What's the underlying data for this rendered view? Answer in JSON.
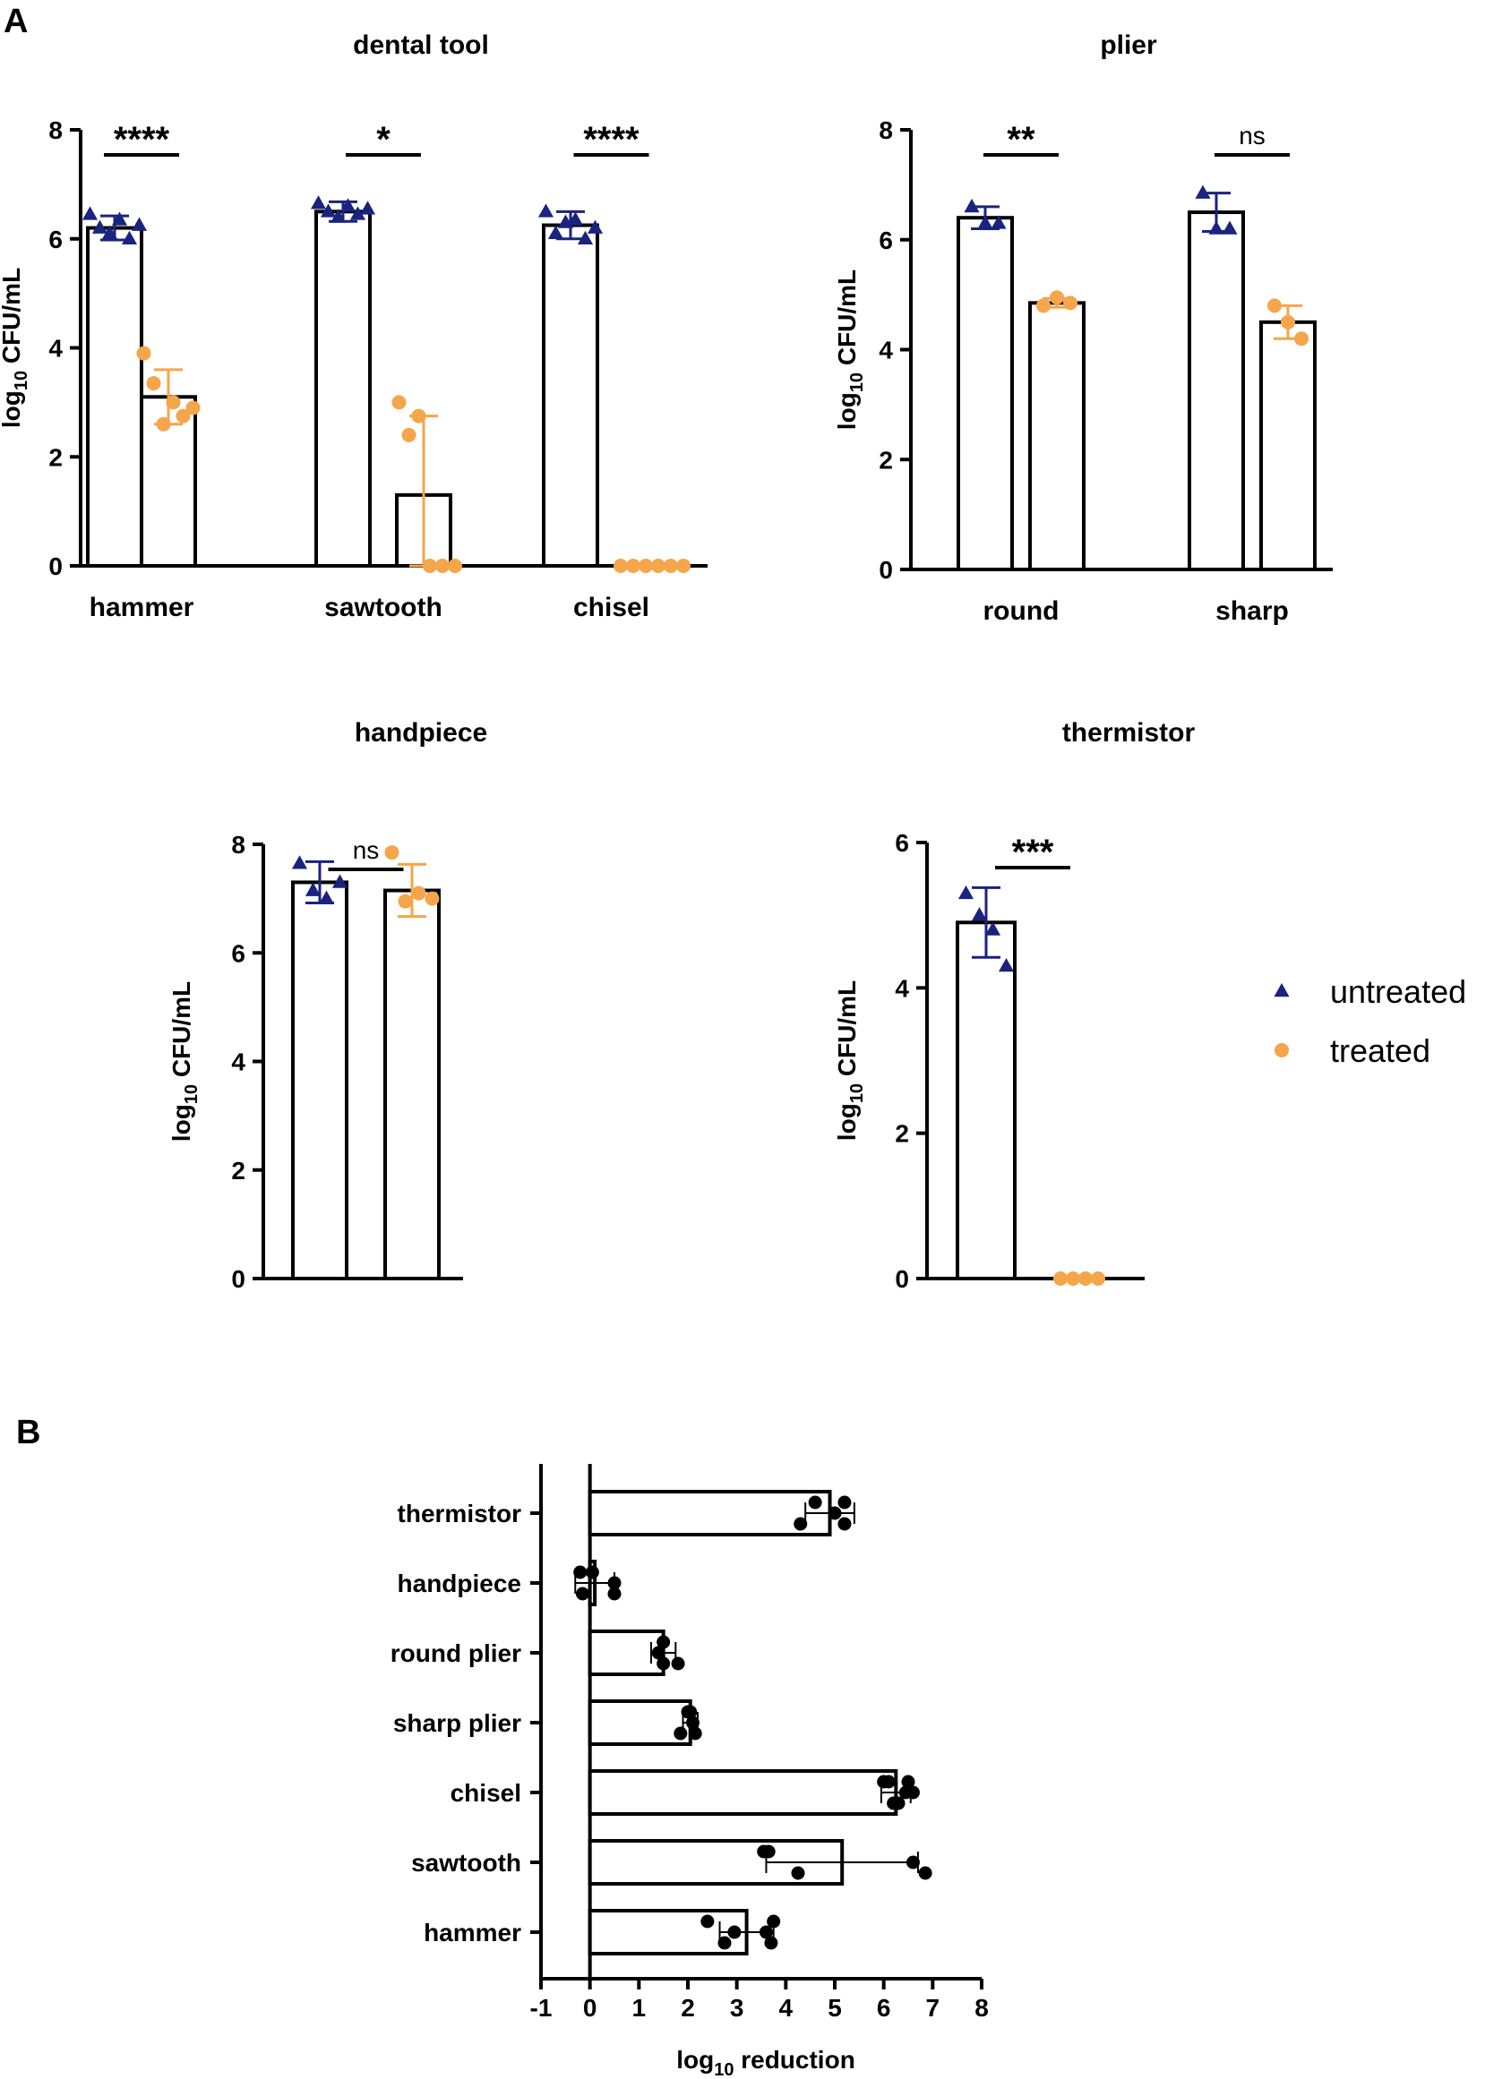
{
  "panels": {
    "a_label": "A",
    "b_label": "B"
  },
  "legend": {
    "untreated": "untreated",
    "treated": "treated"
  },
  "colors": {
    "untreated": "#1a237e",
    "treated": "#f5a54a",
    "axis": "#000000"
  },
  "chart_data": [
    {
      "id": "dental",
      "type": "bar",
      "title": "dental tool",
      "ylabel_main": "log",
      "ylabel_sub": "10",
      "ylabel_rest": " CFU/mL",
      "ylim": [
        0,
        8
      ],
      "yticks": [
        0,
        2,
        4,
        6,
        8
      ],
      "categories": [
        "hammer",
        "sawtooth",
        "chisel"
      ],
      "series": [
        {
          "name": "untreated",
          "values": [
            6.2,
            6.5,
            6.25
          ],
          "sd": [
            0.22,
            0.18,
            0.25
          ],
          "points": [
            [
              6.45,
              6.2,
              6.1,
              6.35,
              6.0,
              6.25
            ],
            [
              6.65,
              6.5,
              6.4,
              6.6,
              6.45,
              6.55
            ],
            [
              6.5,
              6.1,
              6.3,
              6.35,
              6.0,
              6.2
            ]
          ]
        },
        {
          "name": "treated",
          "values": [
            3.1,
            1.3,
            0
          ],
          "sd": [
            0.5,
            1.45,
            0
          ],
          "points": [
            [
              3.9,
              3.35,
              2.6,
              3.0,
              2.75,
              2.9
            ],
            [
              3.0,
              2.4,
              2.75,
              0,
              0,
              0
            ],
            [
              0,
              0,
              0,
              0,
              0,
              0
            ]
          ]
        }
      ],
      "significance": [
        "****",
        "*",
        "****"
      ]
    },
    {
      "id": "plier",
      "type": "bar",
      "title": "plier",
      "ylabel_main": "log",
      "ylabel_sub": "10",
      "ylabel_rest": " CFU/mL",
      "ylim": [
        0,
        8
      ],
      "yticks": [
        0,
        2,
        4,
        6,
        8
      ],
      "categories": [
        "round",
        "sharp"
      ],
      "series": [
        {
          "name": "untreated",
          "values": [
            6.4,
            6.5
          ],
          "sd": [
            0.2,
            0.35
          ],
          "points": [
            [
              6.6,
              6.3,
              6.3
            ],
            [
              6.85,
              6.2,
              6.2
            ]
          ]
        },
        {
          "name": "treated",
          "values": [
            4.85,
            4.5
          ],
          "sd": [
            0.08,
            0.3
          ],
          "points": [
            [
              4.8,
              4.95,
              4.85
            ],
            [
              4.8,
              4.5,
              4.2
            ]
          ]
        }
      ],
      "significance": [
        "**",
        "ns"
      ]
    },
    {
      "id": "handpiece",
      "type": "bar",
      "title": "handpiece",
      "ylabel_main": "log",
      "ylabel_sub": "10",
      "ylabel_rest": " CFU/mL",
      "ylim": [
        0,
        8
      ],
      "yticks": [
        0,
        2,
        4,
        6,
        8
      ],
      "categories": [
        ""
      ],
      "series": [
        {
          "name": "untreated",
          "values": [
            7.3
          ],
          "sd": [
            0.38
          ],
          "points": [
            [
              7.65,
              7.15,
              7.0,
              7.3
            ]
          ]
        },
        {
          "name": "treated",
          "values": [
            7.15
          ],
          "sd": [
            0.48
          ],
          "points": [
            [
              7.85,
              6.95,
              7.1,
              7.0
            ]
          ]
        }
      ],
      "significance": [
        "ns"
      ]
    },
    {
      "id": "thermistor",
      "type": "bar",
      "title": "thermistor",
      "ylabel_main": "log",
      "ylabel_sub": "10",
      "ylabel_rest": " CFU/mL",
      "ylim": [
        0,
        6
      ],
      "yticks": [
        0,
        2,
        4,
        6
      ],
      "categories": [
        ""
      ],
      "series": [
        {
          "name": "untreated",
          "values": [
            4.9
          ],
          "sd": [
            0.48
          ],
          "points": [
            [
              5.3,
              5.0,
              4.8,
              4.3
            ]
          ]
        },
        {
          "name": "treated",
          "values": [
            0
          ],
          "sd": [
            0
          ],
          "points": [
            [
              0,
              0,
              0,
              0
            ]
          ]
        }
      ],
      "significance": [
        "***"
      ]
    },
    {
      "id": "reduction",
      "type": "bar",
      "orientation": "horizontal",
      "xlabel_main": "log",
      "xlabel_sub": "10",
      "xlabel_rest": " reduction",
      "xlim": [
        -1,
        8
      ],
      "xticks": [
        -1,
        0,
        1,
        2,
        3,
        4,
        5,
        6,
        7,
        8
      ],
      "categories": [
        "thermistor",
        "handpiece",
        "round plier",
        "sharp plier",
        "chisel",
        "sawtooth",
        "hammer"
      ],
      "values": [
        4.9,
        0.1,
        1.5,
        2.05,
        6.25,
        5.15,
        3.2
      ],
      "sd": [
        0.5,
        0.4,
        0.25,
        0.15,
        0.3,
        1.55,
        0.55
      ],
      "points": [
        [
          5.2,
          4.3,
          5.0,
          5.2,
          4.6
        ],
        [
          -0.2,
          0.5,
          0.5,
          -0.15,
          0.05
        ],
        [
          1.5,
          1.8,
          1.4,
          1.5
        ],
        [
          2.05,
          1.85,
          2.1,
          2.15,
          2.0
        ],
        [
          6.0,
          6.3,
          6.6,
          6.2,
          6.1,
          6.45,
          6.5
        ],
        [
          3.65,
          4.25,
          6.6,
          6.85,
          3.55
        ],
        [
          2.4,
          2.75,
          2.95,
          3.7,
          3.75,
          3.6
        ]
      ]
    }
  ]
}
